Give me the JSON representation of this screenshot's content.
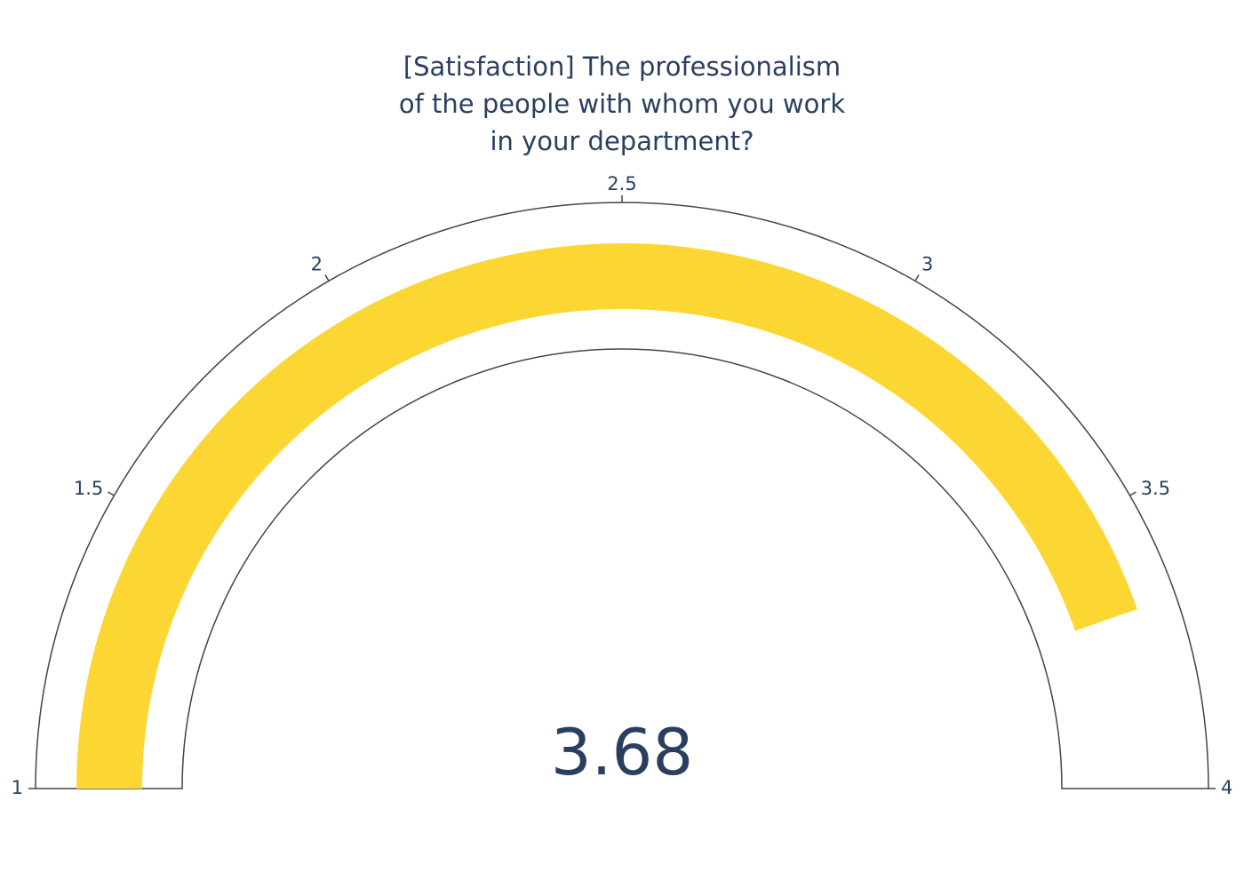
{
  "chart_data": {
    "type": "gauge",
    "title": "[Satisfaction] The professionalism of the people with whom you work in your department?",
    "title_lines": [
      "[Satisfaction] The professionalism",
      "of the people with whom you work",
      "in your department?"
    ],
    "value": 3.68,
    "value_label": "3.68",
    "range": [
      1,
      4
    ],
    "ticks": [
      1,
      1.5,
      2,
      2.5,
      3,
      3.5,
      4
    ],
    "tick_labels": [
      "1",
      "1.5",
      "2",
      "2.5",
      "3",
      "3.5",
      "4"
    ],
    "bar_color": "#fcd734",
    "outline_color": "#444444",
    "text_color": "#2a3f5f"
  }
}
